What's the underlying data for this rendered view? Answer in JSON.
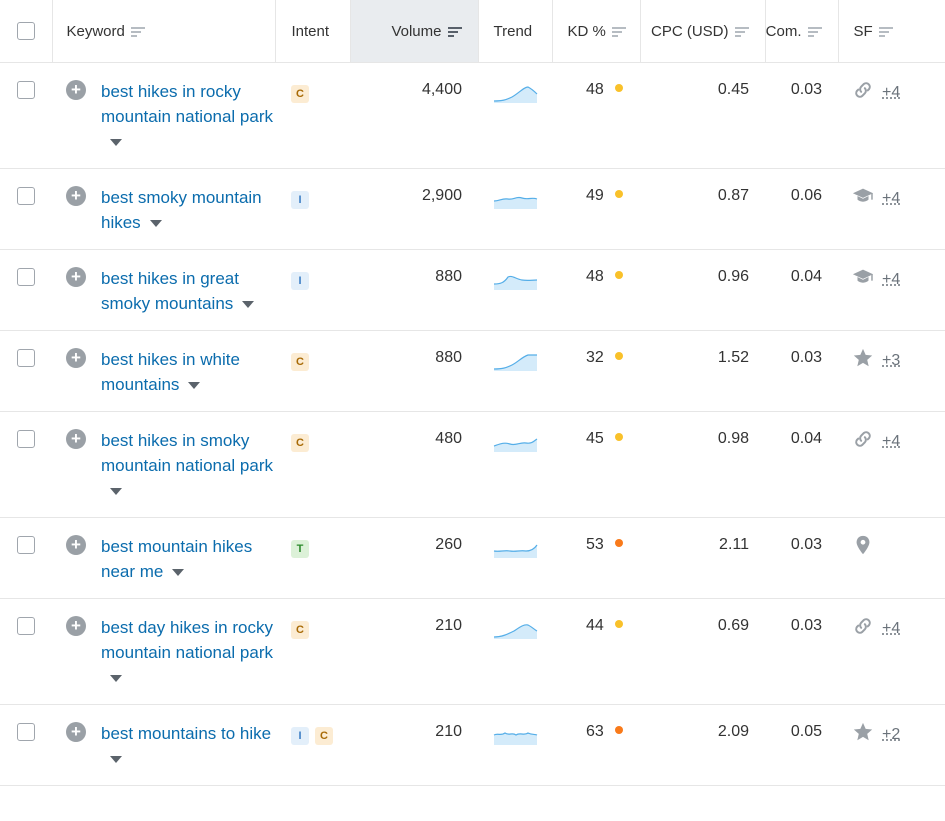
{
  "header": {
    "keyword": "Keyword",
    "intent": "Intent",
    "volume": "Volume",
    "trend": "Trend",
    "kd": "KD %",
    "cpc": "CPC (USD)",
    "com": "Com.",
    "sf": "SF"
  },
  "colors": {
    "kd_yellow": "#f9c12a",
    "kd_orange": "#f97a1a",
    "link": "#0b6cad"
  },
  "rows": [
    {
      "keyword": "best hikes in rocky mountain national park",
      "intents": [
        "C"
      ],
      "volume": "4,400",
      "kd": "48",
      "kd_level": "yellow",
      "cpc": "0.45",
      "com": "0.03",
      "sf_icon": "link-icon",
      "sf_more": "+4"
    },
    {
      "keyword": "best smoky mountain hikes",
      "intents": [
        "I"
      ],
      "volume": "2,900",
      "kd": "49",
      "kd_level": "yellow",
      "cpc": "0.87",
      "com": "0.06",
      "sf_icon": "graduation-cap-icon",
      "sf_more": "+4"
    },
    {
      "keyword": "best hikes in great smoky mountains",
      "intents": [
        "I"
      ],
      "volume": "880",
      "kd": "48",
      "kd_level": "yellow",
      "cpc": "0.96",
      "com": "0.04",
      "sf_icon": "graduation-cap-icon",
      "sf_more": "+4"
    },
    {
      "keyword": "best hikes in white mountains",
      "intents": [
        "C"
      ],
      "volume": "880",
      "kd": "32",
      "kd_level": "yellow",
      "cpc": "1.52",
      "com": "0.03",
      "sf_icon": "star-icon",
      "sf_more": "+3"
    },
    {
      "keyword": "best hikes in smoky mountain national park",
      "intents": [
        "C"
      ],
      "volume": "480",
      "kd": "45",
      "kd_level": "yellow",
      "cpc": "0.98",
      "com": "0.04",
      "sf_icon": "link-icon",
      "sf_more": "+4"
    },
    {
      "keyword": "best mountain hikes near me",
      "intents": [
        "T"
      ],
      "volume": "260",
      "kd": "53",
      "kd_level": "orange",
      "cpc": "2.11",
      "com": "0.03",
      "sf_icon": "location-pin-icon",
      "sf_more": ""
    },
    {
      "keyword": "best day hikes in rocky mountain national park",
      "intents": [
        "C"
      ],
      "volume": "210",
      "kd": "44",
      "kd_level": "yellow",
      "cpc": "0.69",
      "com": "0.03",
      "sf_icon": "link-icon",
      "sf_more": "+4"
    },
    {
      "keyword": "best mountains to hike",
      "intents": [
        "I",
        "C"
      ],
      "volume": "210",
      "kd": "63",
      "kd_level": "orange",
      "cpc": "2.09",
      "com": "0.05",
      "sf_icon": "star-icon",
      "sf_more": "+2"
    }
  ]
}
